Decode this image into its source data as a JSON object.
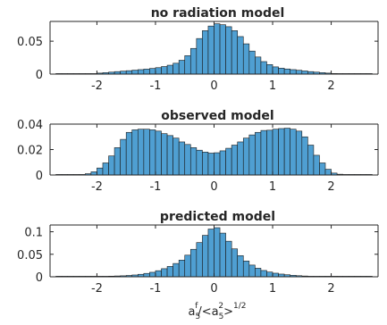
{
  "figure": {
    "xlabel_parts": {
      "a": "a",
      "sub5": "5",
      "supf": "f",
      "sep": "/<a",
      "sub5b": "5",
      "sup2": "2",
      "close": ">",
      "pow": "1/2"
    }
  },
  "chart_data": [
    {
      "type": "bar",
      "title": "no radiation model",
      "xlim": [
        -2.8,
        2.8
      ],
      "ylim": [
        0,
        0.08
      ],
      "xticks": [
        -2,
        -1,
        0,
        1,
        2
      ],
      "xtick_labels": [
        "-2",
        "-1",
        "0",
        "1",
        "2"
      ],
      "yticks": [
        0,
        0.05
      ],
      "ytick_labels": [
        "0",
        "0.05"
      ],
      "bar_color": "#4f9fd2",
      "bin_width": 0.1,
      "bin_centers": [
        -2.65,
        -2.55,
        -2.45,
        -2.35,
        -2.25,
        -2.15,
        -2.05,
        -1.95,
        -1.85,
        -1.75,
        -1.65,
        -1.55,
        -1.45,
        -1.35,
        -1.25,
        -1.15,
        -1.05,
        -0.95,
        -0.85,
        -0.75,
        -0.65,
        -0.55,
        -0.45,
        -0.35,
        -0.25,
        -0.15,
        -0.05,
        0.05,
        0.15,
        0.25,
        0.35,
        0.45,
        0.55,
        0.65,
        0.75,
        0.85,
        0.95,
        1.05,
        1.15,
        1.25,
        1.35,
        1.45,
        1.55,
        1.65,
        1.75,
        1.85,
        1.95,
        2.05,
        2.15,
        2.25,
        2.35,
        2.45,
        2.55,
        2.65
      ],
      "values": [
        0.0005,
        0.0005,
        0,
        0,
        0,
        0,
        0.0008,
        0.0015,
        0.0022,
        0.003,
        0.0038,
        0.0045,
        0.0052,
        0.006,
        0.0068,
        0.0076,
        0.0086,
        0.0098,
        0.0115,
        0.0135,
        0.0165,
        0.021,
        0.028,
        0.039,
        0.054,
        0.066,
        0.073,
        0.0765,
        0.075,
        0.072,
        0.066,
        0.057,
        0.046,
        0.035,
        0.026,
        0.019,
        0.0145,
        0.011,
        0.009,
        0.0078,
        0.0068,
        0.0058,
        0.0048,
        0.0038,
        0.003,
        0.0022,
        0.0015,
        0.0009,
        0,
        0,
        0.0005,
        0.0005,
        0,
        0
      ]
    },
    {
      "type": "bar",
      "title": "observed model",
      "xlim": [
        -2.8,
        2.8
      ],
      "ylim": [
        0,
        0.04
      ],
      "xticks": [
        -2,
        -1,
        0,
        1,
        2
      ],
      "xtick_labels": [
        "-2",
        "-1",
        "0",
        "1",
        "2"
      ],
      "yticks": [
        0,
        0.02,
        0.04
      ],
      "ytick_labels": [
        "0",
        "0.02",
        "0.04"
      ],
      "bar_color": "#4f9fd2",
      "bin_width": 0.1,
      "bin_centers": [
        -2.65,
        -2.55,
        -2.45,
        -2.35,
        -2.25,
        -2.15,
        -2.05,
        -1.95,
        -1.85,
        -1.75,
        -1.65,
        -1.55,
        -1.45,
        -1.35,
        -1.25,
        -1.15,
        -1.05,
        -0.95,
        -0.85,
        -0.75,
        -0.65,
        -0.55,
        -0.45,
        -0.35,
        -0.25,
        -0.15,
        -0.05,
        0.05,
        0.15,
        0.25,
        0.35,
        0.45,
        0.55,
        0.65,
        0.75,
        0.85,
        0.95,
        1.05,
        1.15,
        1.25,
        1.35,
        1.45,
        1.55,
        1.65,
        1.75,
        1.85,
        1.95,
        2.05,
        2.15,
        2.25,
        2.35,
        2.45,
        2.55,
        2.65
      ],
      "values": [
        0,
        0,
        0,
        0,
        0,
        0.001,
        0.0025,
        0.0055,
        0.0095,
        0.015,
        0.0215,
        0.028,
        0.0335,
        0.0355,
        0.036,
        0.036,
        0.0355,
        0.0345,
        0.0325,
        0.031,
        0.029,
        0.026,
        0.024,
        0.0215,
        0.0195,
        0.018,
        0.0172,
        0.0175,
        0.019,
        0.021,
        0.0235,
        0.026,
        0.029,
        0.0315,
        0.0335,
        0.035,
        0.0352,
        0.036,
        0.0365,
        0.0368,
        0.036,
        0.0345,
        0.03,
        0.0235,
        0.0155,
        0.0095,
        0.0045,
        0.0015,
        0.0006,
        0,
        0,
        0,
        0,
        0
      ]
    },
    {
      "type": "bar",
      "title": "predicted model",
      "xlim": [
        -2.8,
        2.8
      ],
      "ylim": [
        0,
        0.115
      ],
      "xticks": [
        -2,
        -1,
        0,
        1,
        2
      ],
      "xtick_labels": [
        "-2",
        "-1",
        "0",
        "1",
        "2"
      ],
      "yticks": [
        0,
        0.05,
        0.1
      ],
      "ytick_labels": [
        "0",
        "0.05",
        "0.1"
      ],
      "bar_color": "#4f9fd2",
      "bin_width": 0.1,
      "bin_centers": [
        -2.65,
        -2.55,
        -2.45,
        -2.35,
        -2.25,
        -2.15,
        -2.05,
        -1.95,
        -1.85,
        -1.75,
        -1.65,
        -1.55,
        -1.45,
        -1.35,
        -1.25,
        -1.15,
        -1.05,
        -0.95,
        -0.85,
        -0.75,
        -0.65,
        -0.55,
        -0.45,
        -0.35,
        -0.25,
        -0.15,
        -0.05,
        0.05,
        0.15,
        0.25,
        0.35,
        0.45,
        0.55,
        0.65,
        0.75,
        0.85,
        0.95,
        1.05,
        1.15,
        1.25,
        1.35,
        1.45,
        1.55,
        1.65,
        1.75,
        1.85,
        1.95,
        2.05,
        2.15,
        2.25,
        2.35,
        2.45,
        2.55,
        2.65
      ],
      "values": [
        0.0008,
        0.0008,
        0,
        0,
        0,
        0,
        0.0005,
        0.0008,
        0.001,
        0.0014,
        0.0018,
        0.0022,
        0.003,
        0.004,
        0.0055,
        0.0075,
        0.01,
        0.0135,
        0.018,
        0.023,
        0.0295,
        0.037,
        0.048,
        0.061,
        0.076,
        0.092,
        0.106,
        0.109,
        0.097,
        0.079,
        0.062,
        0.047,
        0.035,
        0.026,
        0.019,
        0.014,
        0.0105,
        0.008,
        0.006,
        0.0045,
        0.0033,
        0.0024,
        0.0017,
        0.0012,
        0.0008,
        0.0005,
        0,
        0,
        0,
        0,
        0.0008,
        0.0008,
        0,
        0
      ]
    }
  ]
}
